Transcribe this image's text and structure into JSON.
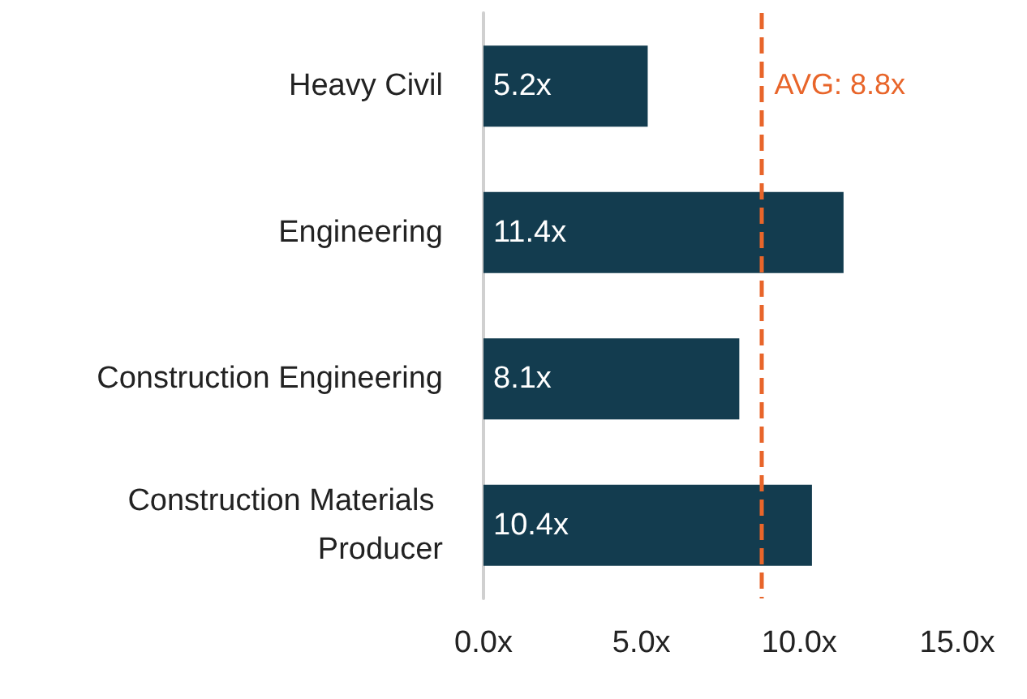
{
  "chart_data": {
    "type": "bar",
    "orientation": "horizontal",
    "categories": [
      "Heavy Civil",
      "Engineering",
      "Construction Engineering",
      "Construction Materials Producer"
    ],
    "values": [
      5.2,
      11.4,
      8.1,
      10.4
    ],
    "value_labels": [
      "5.2x",
      "11.4x",
      "8.1x",
      "10.4x"
    ],
    "color": "#133c4f",
    "xlim": [
      0,
      15
    ],
    "xticks": [
      {
        "value": 0,
        "label": "0.0x"
      },
      {
        "value": 5,
        "label": "5.0x"
      },
      {
        "value": 10,
        "label": "10.0x"
      },
      {
        "value": 15,
        "label": "15.0x"
      }
    ],
    "ref_lines": [
      {
        "axis": "x",
        "value": 8.8,
        "label": "AVG: 8.8x",
        "color": "#e8652a",
        "line_style": "dashed"
      }
    ],
    "grid": false
  }
}
